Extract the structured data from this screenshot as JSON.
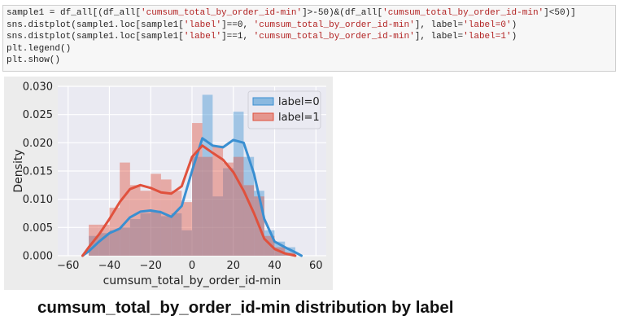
{
  "code_cell": {
    "lines": [
      "sample1 = df_all[(df_all['cumsum_total_by_order_id-min']>-50)&(df_all['cumsum_total_by_order_id-min']<50)]",
      "sns.distplot(sample1.loc[sample1['label']==0, 'cumsum_total_by_order_id-min'], label='label=0')",
      "sns.distplot(sample1.loc[sample1['label']==1, 'cumsum_total_by_order_id-min'], label='label=1')",
      "plt.legend()",
      "plt.show()"
    ]
  },
  "caption": "cumsum_total_by_order_id-min distribution by label",
  "chart_data": {
    "type": "bar",
    "xlabel": "cumsum_total_by_order_id-min",
    "ylabel": "Density",
    "xlim": [
      -65,
      65
    ],
    "ylim": [
      0,
      0.03
    ],
    "xticks": [
      -60,
      -40,
      -20,
      0,
      20,
      40,
      60
    ],
    "yticks": [
      0.0,
      0.005,
      0.01,
      0.015,
      0.02,
      0.025,
      0.03
    ],
    "ytick_labels": [
      "0.000",
      "0.005",
      "0.010",
      "0.015",
      "0.020",
      "0.025",
      "0.030"
    ],
    "grid": true,
    "legend_position": "top-right",
    "bin_edges": [
      -50,
      -45,
      -40,
      -35,
      -30,
      -25,
      -20,
      -15,
      -10,
      -5,
      0,
      5,
      10,
      15,
      20,
      25,
      30,
      35,
      40,
      45,
      50
    ],
    "series": [
      {
        "name": "label=0",
        "color": "#3a8fd1",
        "hist": [
          0.0035,
          0.004,
          0.0045,
          0.005,
          0.0065,
          0.0075,
          0.008,
          0.007,
          0.0075,
          0.0045,
          0.0175,
          0.0285,
          0.0105,
          0.0155,
          0.0255,
          0.0175,
          0.0115,
          0.0045,
          0.0025,
          0.0015
        ],
        "kde": {
          "x": [
            -53,
            -50,
            -45,
            -40,
            -35,
            -30,
            -25,
            -20,
            -15,
            -10,
            -5,
            0,
            5,
            10,
            15,
            20,
            25,
            30,
            35,
            40,
            45,
            50,
            53
          ],
          "y": [
            0.0,
            0.0008,
            0.0025,
            0.004,
            0.0048,
            0.0068,
            0.0078,
            0.008,
            0.0077,
            0.0069,
            0.0088,
            0.015,
            0.0208,
            0.0195,
            0.0192,
            0.0205,
            0.02,
            0.0145,
            0.0065,
            0.0025,
            0.0015,
            0.0006,
            0.0
          ]
        }
      },
      {
        "name": "label=1",
        "color": "#e0513d",
        "hist": [
          0.0055,
          0.0055,
          0.0085,
          0.0165,
          0.0125,
          0.0115,
          0.0145,
          0.0135,
          0.0115,
          0.0095,
          0.0235,
          0.0175,
          0.0195,
          0.0165,
          0.0175,
          0.0125,
          0.0105,
          0.0035,
          0.0015,
          0.0005
        ],
        "kde": {
          "x": [
            -53,
            -50,
            -45,
            -40,
            -35,
            -30,
            -25,
            -20,
            -15,
            -10,
            -5,
            0,
            5,
            10,
            15,
            20,
            25,
            30,
            35,
            40,
            45,
            50
          ],
          "y": [
            0.0,
            0.0015,
            0.0038,
            0.0065,
            0.0095,
            0.0118,
            0.0125,
            0.012,
            0.0112,
            0.011,
            0.0123,
            0.0175,
            0.0195,
            0.0182,
            0.017,
            0.0148,
            0.0115,
            0.0075,
            0.003,
            0.0012,
            0.0004,
            0.0
          ]
        }
      }
    ]
  }
}
